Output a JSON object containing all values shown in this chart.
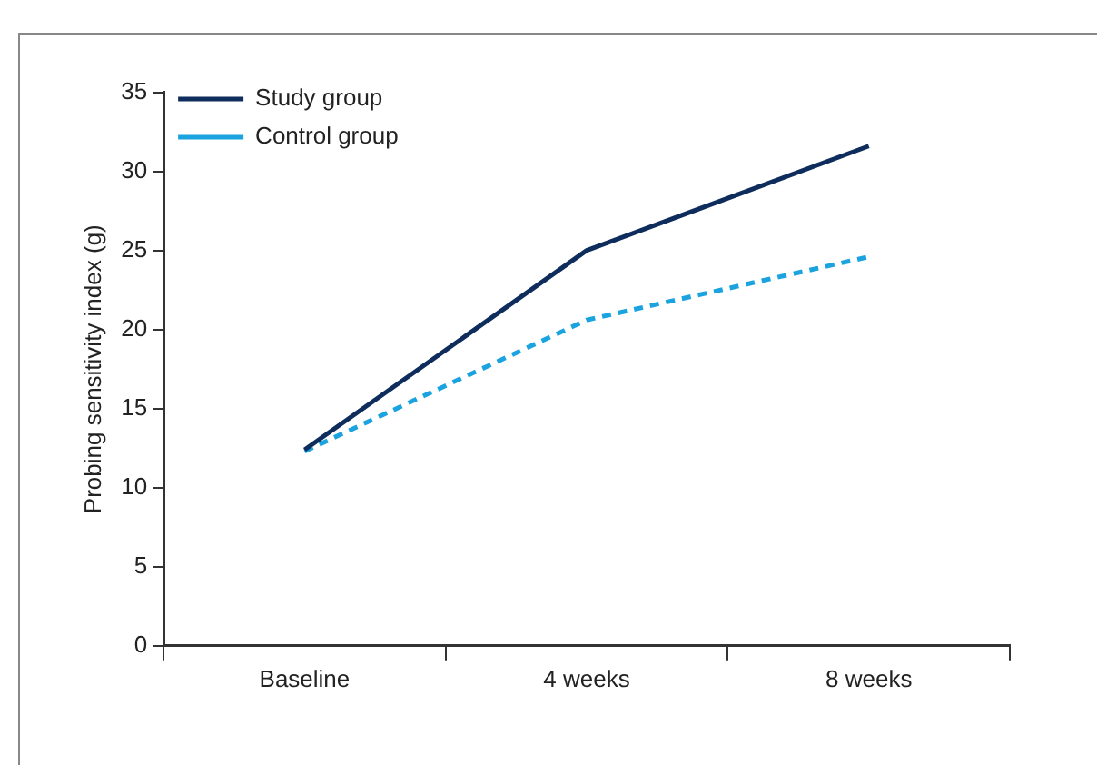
{
  "chart_data": {
    "type": "line",
    "ylabel": "Probing sensitivity index (g)",
    "categories": [
      "Baseline",
      "4 weeks",
      "8 weeks"
    ],
    "series": [
      {
        "name": "Study group",
        "color": "#0f2d5c",
        "values": [
          12.4,
          25.0,
          31.6
        ],
        "line_style": "solid"
      },
      {
        "name": "Control group",
        "color": "#1ba3e0",
        "values": [
          12.3,
          20.6,
          24.6
        ],
        "line_style": "dashed"
      }
    ],
    "ylim": [
      0,
      35
    ],
    "yticks": [
      0,
      5,
      10,
      15,
      20,
      25,
      30,
      35
    ],
    "grid": false,
    "legend": "top left",
    "marker": "none"
  }
}
